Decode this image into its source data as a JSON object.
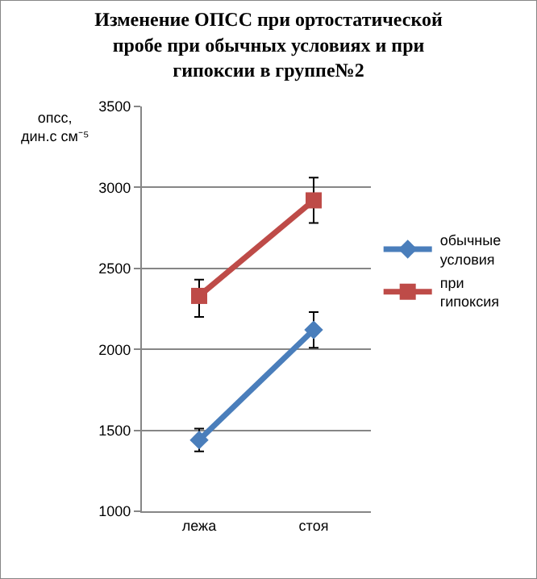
{
  "chart_data": {
    "type": "line",
    "title": "Изменение ОПСС при ортостатической пробе при обычных условиях и при гипоксии в группе№2",
    "ylabel": "опсс,\nдин.с см⁻⁵",
    "categories": [
      "лежа",
      "стоя"
    ],
    "series": [
      {
        "name": "обычные условия",
        "color": "#4a7ebb",
        "marker": "diamond",
        "values": [
          1440,
          2120
        ],
        "errors": [
          70,
          110
        ]
      },
      {
        "name": "при гипоксия",
        "color": "#be4b48",
        "marker": "square",
        "values": [
          2330,
          2920
        ],
        "errors": [
          [
            2200,
            2430
          ],
          [
            2780,
            3060
          ]
        ]
      }
    ],
    "ylim": [
      1000,
      3500
    ],
    "yticks": [
      1000,
      1500,
      2000,
      2500,
      3000,
      3500
    ],
    "grid": "y",
    "legend": "right",
    "line_style": "solid"
  }
}
